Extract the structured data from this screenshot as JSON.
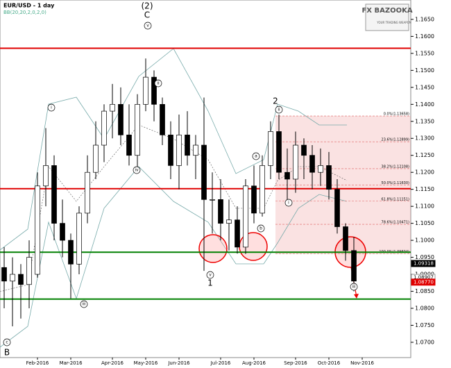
{
  "chart_data": {
    "type": "candlestick",
    "title": "EUR/USD - 1 day",
    "subtitle": "BB(20,20,2,0,2,0)",
    "logo": {
      "name": "FX BAZOOKA",
      "tagline": "YOUR TRADING WEAPON"
    },
    "categories": [
      null,
      null,
      null,
      null,
      "Feb-2016",
      null,
      null,
      null,
      "Mar-2016",
      null,
      null,
      null,
      null,
      "Apr-2016",
      null,
      null,
      null,
      "May-2016",
      null,
      null,
      null,
      "Jun-2016",
      null,
      null,
      null,
      null,
      "Jul-2016",
      null,
      null,
      null,
      "Aug-2016",
      null,
      null,
      null,
      null,
      "Sep-2016",
      null,
      null,
      null,
      "Oct-2016",
      null,
      null,
      null,
      "Nov-2016"
    ],
    "open": [
      1.092,
      1.088,
      1.09,
      1.087,
      1.09,
      1.116,
      1.122,
      1.105,
      1.1,
      1.093,
      1.108,
      1.12,
      1.128,
      1.138,
      1.14,
      1.131,
      1.125,
      1.14,
      1.148,
      1.14,
      1.131,
      1.122,
      1.131,
      1.125,
      1.128,
      1.112,
      1.112,
      1.105,
      1.106,
      1.098,
      1.116,
      1.108,
      1.122,
      1.132,
      1.12,
      1.118,
      1.128,
      1.125,
      1.12,
      1.122,
      1.115,
      1.104,
      1.097,
      null
    ],
    "high": [
      1.098,
      1.095,
      1.093,
      1.1,
      1.12,
      1.133,
      1.125,
      1.112,
      1.102,
      1.11,
      1.125,
      1.135,
      1.14,
      1.146,
      1.145,
      1.14,
      1.143,
      1.1535,
      1.15,
      1.142,
      1.135,
      1.137,
      1.138,
      1.131,
      1.142,
      1.12,
      1.118,
      1.112,
      1.11,
      1.118,
      1.122,
      1.125,
      1.135,
      1.137,
      1.127,
      1.132,
      1.13,
      1.128,
      1.127,
      1.126,
      1.118,
      1.105,
      1.101,
      null
    ],
    "low": [
      1.08,
      1.0747,
      1.077,
      1.08,
      1.089,
      1.11,
      1.1,
      1.095,
      1.0829,
      1.09,
      1.105,
      1.118,
      1.123,
      1.13,
      1.128,
      1.122,
      1.12,
      1.138,
      1.135,
      1.128,
      1.118,
      1.115,
      1.122,
      1.118,
      1.091,
      1.102,
      1.1,
      1.097,
      1.0961,
      1.096,
      1.105,
      1.107,
      1.118,
      1.118,
      1.112,
      1.114,
      1.118,
      1.115,
      1.116,
      1.112,
      1.102,
      1.094,
      1.085,
      null
    ],
    "close": [
      1.088,
      1.09,
      1.087,
      1.095,
      1.116,
      1.122,
      1.105,
      1.1,
      1.093,
      1.108,
      1.12,
      1.128,
      1.138,
      1.14,
      1.131,
      1.125,
      1.14,
      1.148,
      1.14,
      1.131,
      1.122,
      1.131,
      1.125,
      1.128,
      1.112,
      1.112,
      1.105,
      1.106,
      1.098,
      1.116,
      1.108,
      1.122,
      1.132,
      1.12,
      1.118,
      1.128,
      1.125,
      1.12,
      1.122,
      1.115,
      1.104,
      1.097,
      1.088,
      null
    ],
    "ylim": [
      1.0655,
      1.1707
    ],
    "yticks": [
      {
        "value": 1.07,
        "label": "1.0700"
      },
      {
        "value": 1.075,
        "label": "1.0750"
      },
      {
        "value": 1.08,
        "label": "1.0800"
      },
      {
        "value": 1.085,
        "label": "1.0850"
      },
      {
        "value": 1.09,
        "label": "1.0900"
      },
      {
        "value": 1.095,
        "label": "1.0950"
      },
      {
        "value": 1.1,
        "label": "1.1000"
      },
      {
        "value": 1.105,
        "label": "1.1050"
      },
      {
        "value": 1.11,
        "label": "1.1100"
      },
      {
        "value": 1.115,
        "label": "1.1150"
      },
      {
        "value": 1.12,
        "label": "1.1200"
      },
      {
        "value": 1.125,
        "label": "1.1250"
      },
      {
        "value": 1.13,
        "label": "1.1300"
      },
      {
        "value": 1.135,
        "label": "1.1350"
      },
      {
        "value": 1.14,
        "label": "1.1400"
      },
      {
        "value": 1.145,
        "label": "1.1450"
      },
      {
        "value": 1.15,
        "label": "1.1500"
      },
      {
        "value": 1.155,
        "label": "1.1550"
      },
      {
        "value": 1.16,
        "label": "1.1600"
      },
      {
        "value": 1.165,
        "label": "1.1650"
      }
    ],
    "levels": [
      {
        "value": 1.1565,
        "color": "#e00000"
      },
      {
        "value": 1.1152,
        "color": "#e00000"
      },
      {
        "value": 1.0965,
        "color": "#008000"
      },
      {
        "value": 1.0827,
        "color": "#008000"
      }
    ],
    "fibonacci": [
      {
        "value": 1.13658,
        "label": "0.0%(1.13658)"
      },
      {
        "value": 1.12899,
        "label": "23.6%(1.12899)"
      },
      {
        "value": 1.12108,
        "label": "38.2%(1.12108)"
      },
      {
        "value": 1.1163,
        "label": "50.0%(1.11630)"
      },
      {
        "value": 1.11151,
        "label": "61.8%(1.11151)"
      },
      {
        "value": 1.10471,
        "label": "78.6%(1.10471)"
      },
      {
        "value": 1.09604,
        "label": "100.0%(1.09604)"
      }
    ],
    "price_labels": [
      {
        "value": 1.09318,
        "label": "1.09318",
        "color": "#000"
      },
      {
        "value": 1.08907,
        "label": "1.08907",
        "color": "#fff"
      },
      {
        "value": 1.0877,
        "label": "1.08770",
        "color": "#e00000"
      }
    ],
    "annotations": [
      "(2)",
      "C",
      "2",
      "1",
      "B",
      "c",
      "v",
      "iii",
      "ii",
      "i",
      "iv",
      "a",
      "b",
      "ii",
      "i",
      "v",
      "iii"
    ],
    "colors": {
      "up": "#ffffff",
      "down": "#000000"
    }
  }
}
